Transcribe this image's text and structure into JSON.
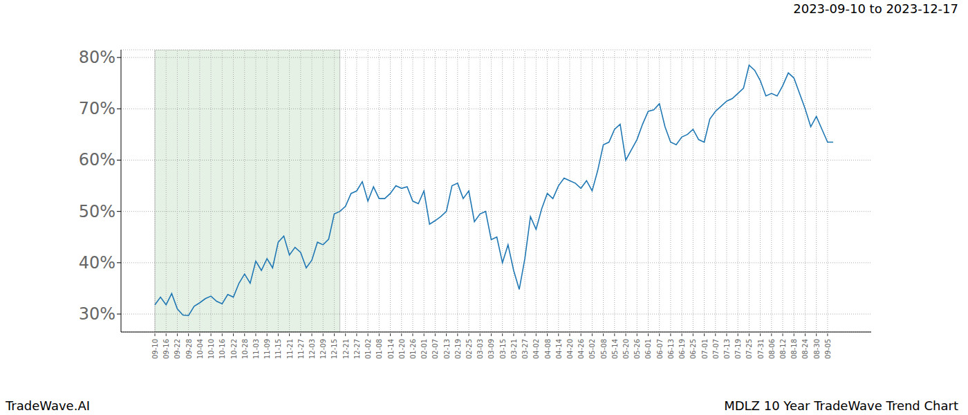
{
  "chart_data": {
    "type": "line",
    "title": "2023-09-10 to 2023-12-17",
    "annotations": [
      "TradeWave.AI",
      "MDLZ 10 Year TradeWave Trend Chart"
    ],
    "color": "#1f77b4",
    "grid": true,
    "ylim": [
      26.5,
      81.5
    ],
    "yticks": [
      {
        "value": 30,
        "label": "30%"
      },
      {
        "value": 40,
        "label": "40%"
      },
      {
        "value": 50,
        "label": "50%"
      },
      {
        "value": 60,
        "label": "60%"
      },
      {
        "value": 70,
        "label": "70%"
      },
      {
        "value": 80,
        "label": "80%"
      }
    ],
    "categories": [
      "09-10",
      null,
      "09-16",
      null,
      "09-22",
      null,
      "09-28",
      null,
      "10-04",
      null,
      "10-10",
      null,
      "10-16",
      null,
      "10-22",
      null,
      "10-28",
      null,
      "11-03",
      null,
      "11-09",
      null,
      "11-15",
      null,
      "11-21",
      null,
      "11-27",
      null,
      "12-03",
      null,
      "12-09",
      null,
      "12-15",
      null,
      "12-21",
      null,
      "12-27",
      null,
      "01-02",
      null,
      "01-08",
      null,
      "01-14",
      null,
      "01-20",
      null,
      "01-26",
      null,
      "02-01",
      null,
      "02-07",
      null,
      "02-13",
      null,
      "02-19",
      null,
      "02-25",
      null,
      "03-03",
      null,
      "03-09",
      null,
      "03-15",
      null,
      "03-21",
      null,
      "03-27",
      null,
      "04-02",
      null,
      "04-08",
      null,
      "04-14",
      null,
      "04-20",
      null,
      "04-26",
      null,
      "05-02",
      null,
      "05-08",
      null,
      "05-14",
      null,
      "05-20",
      null,
      "05-26",
      null,
      "06-01",
      null,
      "06-07",
      null,
      "06-13",
      null,
      "06-19",
      null,
      "06-25",
      null,
      "07-01",
      null,
      "07-07",
      null,
      "07-13",
      null,
      "07-19",
      null,
      "07-25",
      null,
      "07-31",
      null,
      "08-06",
      null,
      "08-12",
      null,
      "08-18",
      null,
      "08-24",
      null,
      "08-30",
      null,
      "09-05",
      null
    ],
    "values": [
      31.8,
      33.3,
      31.8,
      34.0,
      31.0,
      29.8,
      29.7,
      31.5,
      32.2,
      33.0,
      33.5,
      32.5,
      32.0,
      33.8,
      33.3,
      36.0,
      37.8,
      36.0,
      40.3,
      38.5,
      40.8,
      39.0,
      44.0,
      45.2,
      41.5,
      43.0,
      42.0,
      39.0,
      40.5,
      44.0,
      43.5,
      44.6,
      49.5,
      50.0,
      51.0,
      53.5,
      54.0,
      55.8,
      52.0,
      54.8,
      52.5,
      52.5,
      53.5,
      55.0,
      54.5,
      54.8,
      52.0,
      51.5,
      54.0,
      47.5,
      48.2,
      49.0,
      50.0,
      55.0,
      55.5,
      52.5,
      54.0,
      48.0,
      49.5,
      50.0,
      44.5,
      45.0,
      40.0,
      43.5,
      38.5,
      34.8,
      40.8,
      49.0,
      46.5,
      50.5,
      53.5,
      52.5,
      55.0,
      56.5,
      56.0,
      55.5,
      54.5,
      56.0,
      54.0,
      58.0,
      63.0,
      63.5,
      66.0,
      67.0,
      60.0,
      62.0,
      64.0,
      67.0,
      69.5,
      69.8,
      71.0,
      66.5,
      63.5,
      63.0,
      64.5,
      65.0,
      66.0,
      64.0,
      63.5,
      68.0,
      69.5,
      70.5,
      71.5,
      72.0,
      73.0,
      74.0,
      78.5,
      77.5,
      75.5,
      72.5,
      73.0,
      72.5,
      74.5,
      77.0,
      76.0,
      73.0,
      70.0,
      66.5,
      68.5,
      66.0,
      63.5,
      63.5
    ]
  }
}
